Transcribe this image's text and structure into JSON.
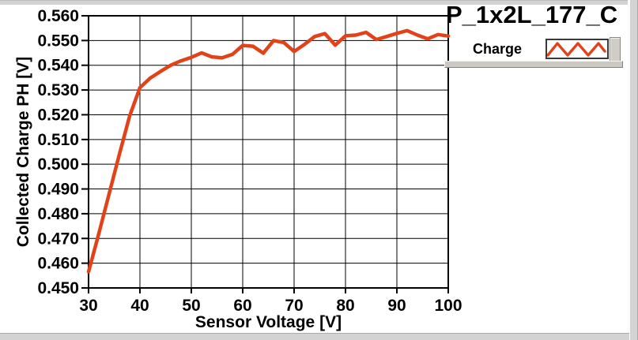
{
  "header": {
    "title": "P_1x2L_177_C"
  },
  "legend": {
    "series_label": "Charge",
    "swatch_style": "red-zigzag-line"
  },
  "colors": {
    "curve": "#e2421a",
    "grid": "#000000",
    "plot_background": "#ffffff",
    "panel_edge": "#d3d3d3",
    "text": "#000000"
  },
  "chart_data": {
    "type": "line",
    "title": "P_1x2L_177_C",
    "xlabel": "Sensor Voltage [V]",
    "ylabel": "Collected Charge PH [V]",
    "xlim": [
      30,
      100
    ],
    "ylim": [
      0.45,
      0.56
    ],
    "xticks": [
      30,
      40,
      50,
      60,
      70,
      80,
      90,
      100
    ],
    "ytick_labels": [
      "0.450",
      "0.460",
      "0.470",
      "0.480",
      "0.490",
      "0.500",
      "0.510",
      "0.520",
      "0.530",
      "0.540",
      "0.550",
      "0.560"
    ],
    "grid": true,
    "legend_position": "top-right",
    "series": [
      {
        "name": "Charge",
        "color": "#e2421a",
        "x": [
          30,
          32,
          34,
          36,
          38,
          40,
          42,
          44,
          46,
          48,
          50,
          52,
          54,
          56,
          58,
          60,
          62,
          64,
          66,
          68,
          70,
          72,
          74,
          76,
          78,
          80,
          82,
          84,
          86,
          88,
          90,
          92,
          94,
          96,
          98,
          100
        ],
        "y": [
          0.4565,
          0.472,
          0.488,
          0.504,
          0.5195,
          0.531,
          0.5348,
          0.5375,
          0.54,
          0.5418,
          0.5432,
          0.545,
          0.5434,
          0.543,
          0.5444,
          0.548,
          0.5477,
          0.5449,
          0.55,
          0.5492,
          0.5456,
          0.5484,
          0.5516,
          0.5528,
          0.5481,
          0.5519,
          0.5522,
          0.5533,
          0.5504,
          0.5516,
          0.5529,
          0.554,
          0.5522,
          0.5507,
          0.5524,
          0.5518
        ]
      }
    ]
  }
}
